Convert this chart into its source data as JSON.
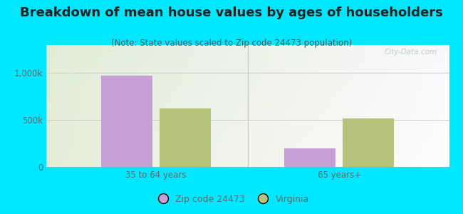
{
  "title": "Breakdown of mean house values by ages of householders",
  "subtitle": "(Note: State values scaled to Zip code 24473 population)",
  "categories": [
    "35 to 64 years",
    "65 years+"
  ],
  "zip_values": [
    970000,
    200000
  ],
  "state_values": [
    620000,
    520000
  ],
  "zip_color": "#c8a0d8",
  "state_color": "#b5c47a",
  "background_outer": "#00e8ff",
  "ylim": [
    0,
    1300000
  ],
  "ytick_vals": [
    0,
    500000,
    1000000
  ],
  "ytick_labels": [
    "0",
    "500k",
    "1,000k"
  ],
  "bar_width": 0.28,
  "legend_labels": [
    "Zip code 24473",
    "Virginia"
  ],
  "watermark": "City-Data.com",
  "title_fontsize": 13,
  "subtitle_fontsize": 8.5,
  "tick_fontsize": 8.5,
  "legend_fontsize": 9,
  "title_color": "#222222",
  "subtitle_color": "#555555",
  "tick_color": "#666666",
  "grid_color": "#cccccc",
  "legend_marker_size": 10
}
